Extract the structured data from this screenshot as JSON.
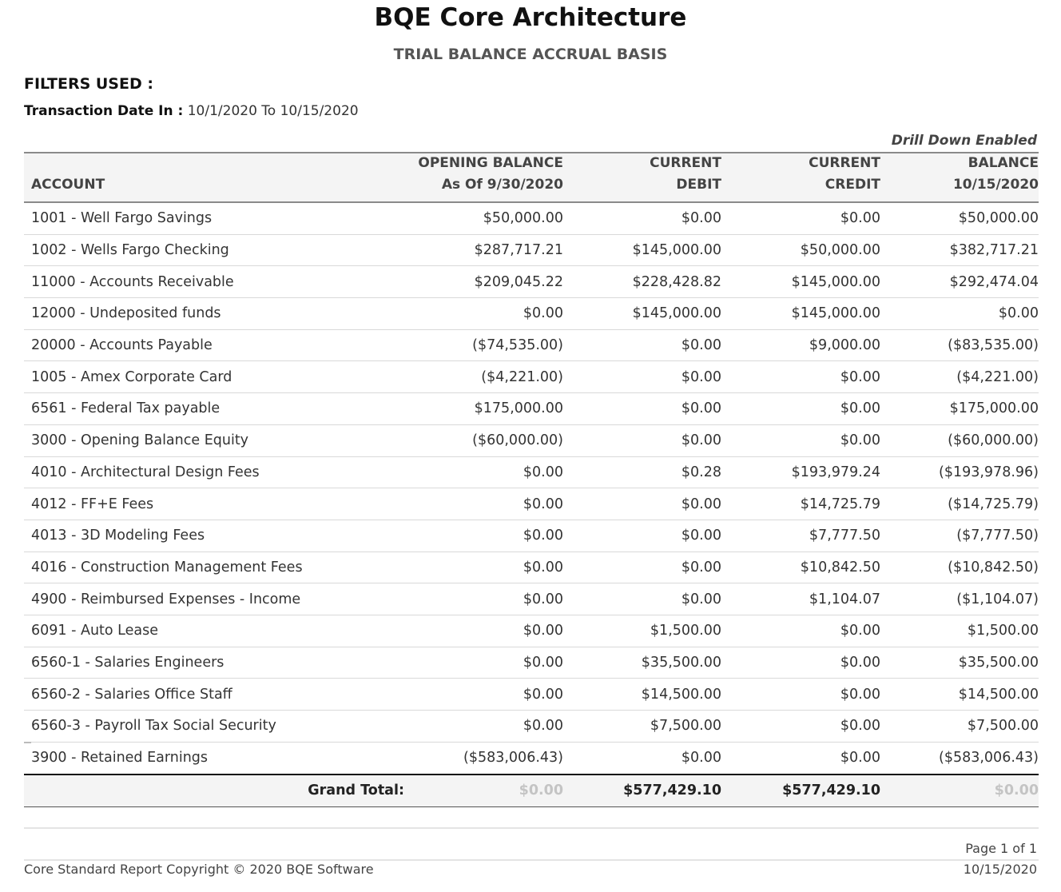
{
  "report": {
    "company": "BQE Core Architecture",
    "title": "TRIAL BALANCE ACCRUAL BASIS",
    "filters_label": "FILTERS USED :",
    "filter_name": "Transaction Date In :",
    "filter_value": "10/1/2020 To 10/15/2020",
    "drill_down": "Drill Down Enabled"
  },
  "columns": {
    "account": "ACCOUNT",
    "opening_line1": "OPENING BALANCE",
    "opening_line2": "As Of 9/30/2020",
    "debit_line1": "CURRENT",
    "debit_line2": "DEBIT",
    "credit_line1": "CURRENT",
    "credit_line2": "CREDIT",
    "balance_line1": "BALANCE",
    "balance_line2": "10/15/2020"
  },
  "rows": [
    {
      "account": "1001 - Well Fargo Savings",
      "opening": "$50,000.00",
      "debit": "$0.00",
      "credit": "$0.00",
      "balance": "$50,000.00"
    },
    {
      "account": "1002 - Wells Fargo Checking",
      "opening": "$287,717.21",
      "debit": "$145,000.00",
      "credit": "$50,000.00",
      "balance": "$382,717.21"
    },
    {
      "account": "11000 - Accounts Receivable",
      "opening": "$209,045.22",
      "debit": "$228,428.82",
      "credit": "$145,000.00",
      "balance": "$292,474.04"
    },
    {
      "account": "12000 - Undeposited  funds",
      "opening": "$0.00",
      "debit": "$145,000.00",
      "credit": "$145,000.00",
      "balance": "$0.00"
    },
    {
      "account": "20000 - Accounts Payable",
      "opening": "($74,535.00)",
      "debit": "$0.00",
      "credit": "$9,000.00",
      "balance": "($83,535.00)"
    },
    {
      "account": "1005 - Amex Corporate Card",
      "opening": "($4,221.00)",
      "debit": "$0.00",
      "credit": "$0.00",
      "balance": "($4,221.00)"
    },
    {
      "account": "6561 - Federal Tax payable",
      "opening": "$175,000.00",
      "debit": "$0.00",
      "credit": "$0.00",
      "balance": "$175,000.00"
    },
    {
      "account": "3000 - Opening Balance Equity",
      "opening": "($60,000.00)",
      "debit": "$0.00",
      "credit": "$0.00",
      "balance": "($60,000.00)"
    },
    {
      "account": "4010 - Architectural Design Fees",
      "opening": "$0.00",
      "debit": "$0.28",
      "credit": "$193,979.24",
      "balance": "($193,978.96)"
    },
    {
      "account": "4012 - FF+E Fees",
      "opening": "$0.00",
      "debit": "$0.00",
      "credit": "$14,725.79",
      "balance": "($14,725.79)"
    },
    {
      "account": "4013 - 3D Modeling Fees",
      "opening": "$0.00",
      "debit": "$0.00",
      "credit": "$7,777.50",
      "balance": "($7,777.50)"
    },
    {
      "account": "4016 - Construction Management Fees",
      "opening": "$0.00",
      "debit": "$0.00",
      "credit": "$10,842.50",
      "balance": "($10,842.50)"
    },
    {
      "account": "4900 - Reimbursed Expenses - Income",
      "opening": "$0.00",
      "debit": "$0.00",
      "credit": "$1,104.07",
      "balance": "($1,104.07)"
    },
    {
      "account": "6091 - Auto Lease",
      "opening": "$0.00",
      "debit": "$1,500.00",
      "credit": "$0.00",
      "balance": "$1,500.00"
    },
    {
      "account": "6560-1 - Salaries Engineers",
      "opening": "$0.00",
      "debit": "$35,500.00",
      "credit": "$0.00",
      "balance": "$35,500.00"
    },
    {
      "account": "6560-2 - Salaries Office Staff",
      "opening": "$0.00",
      "debit": "$14,500.00",
      "credit": "$0.00",
      "balance": "$14,500.00"
    },
    {
      "account": "6560-3 - Payroll Tax Social Security",
      "opening": "$0.00",
      "debit": "$7,500.00",
      "credit": "$0.00",
      "balance": "$7,500.00"
    },
    {
      "account": "3900 - Retained Earnings",
      "opening": "($583,006.43)",
      "debit": "$0.00",
      "credit": "$0.00",
      "balance": "($583,006.43)"
    }
  ],
  "total": {
    "label": "Grand Total:",
    "opening": "$0.00",
    "debit": "$577,429.10",
    "credit": "$577,429.10",
    "balance": "$0.00"
  },
  "footer": {
    "page": "Page 1 of 1",
    "copyright": "Core Standard Report Copyright © 2020 BQE Software",
    "date": "10/15/2020"
  }
}
